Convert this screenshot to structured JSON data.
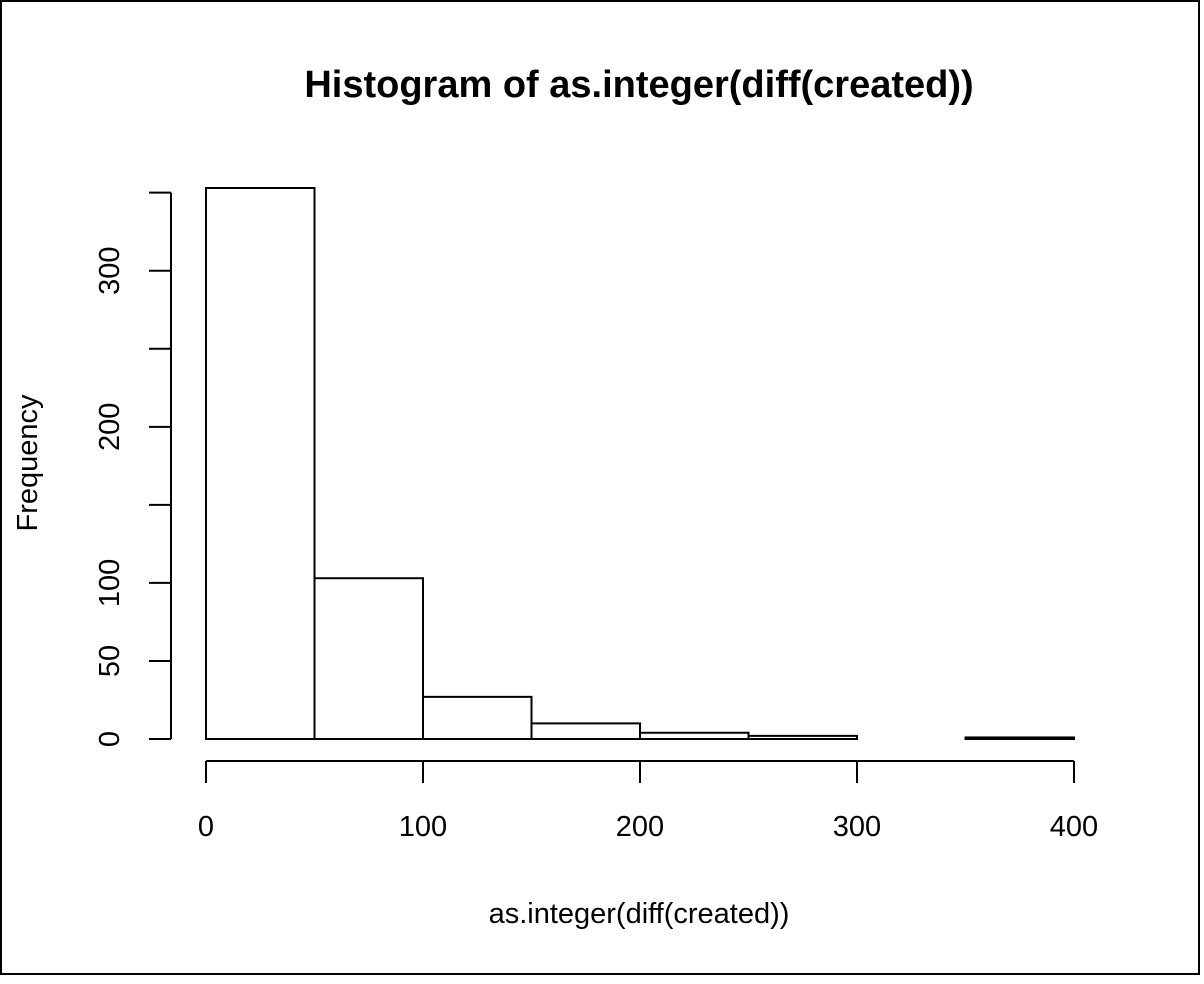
{
  "chart_data": {
    "type": "bar",
    "title": "Histogram of as.integer(diff(created))",
    "xlabel": "as.integer(diff(created))",
    "ylabel": "Frequency",
    "bins": [
      {
        "from": 0,
        "to": 50,
        "count": 353
      },
      {
        "from": 50,
        "to": 100,
        "count": 103
      },
      {
        "from": 100,
        "to": 150,
        "count": 27
      },
      {
        "from": 150,
        "to": 200,
        "count": 10
      },
      {
        "from": 200,
        "to": 250,
        "count": 4
      },
      {
        "from": 250,
        "to": 300,
        "count": 2
      },
      {
        "from": 300,
        "to": 350,
        "count": 0
      },
      {
        "from": 350,
        "to": 400,
        "count": 1
      }
    ],
    "xlim": [
      0,
      400
    ],
    "ylim": [
      0,
      353
    ],
    "x_ticks": [
      0,
      100,
      200,
      300,
      400
    ],
    "x_tick_labels": [
      "0",
      "100",
      "200",
      "300",
      "400"
    ],
    "y_ticks": [
      0,
      50,
      100,
      150,
      200,
      250,
      300,
      350
    ],
    "y_tick_labels": [
      "0",
      "50",
      "100",
      "",
      "200",
      "",
      "300",
      ""
    ],
    "grid": false
  }
}
